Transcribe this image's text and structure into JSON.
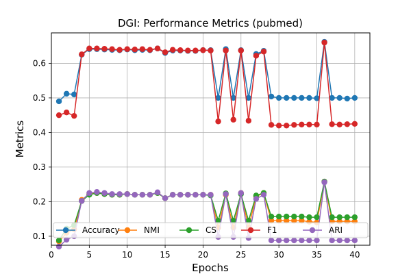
{
  "chart_data": {
    "type": "line",
    "title": "DGI: Performance Metrics (pubmed)",
    "xlabel": "Epochs",
    "ylabel": "Metrics",
    "xlim": [
      0,
      42
    ],
    "ylim": [
      0.074,
      0.688
    ],
    "xticks": [
      0,
      5,
      10,
      15,
      20,
      25,
      30,
      35,
      40
    ],
    "yticks": [
      0.1,
      0.2,
      0.3,
      0.4,
      0.5,
      0.6
    ],
    "grid": true,
    "legend_position": "bottom",
    "legend_columns": 5,
    "x": [
      1,
      2,
      3,
      4,
      5,
      6,
      7,
      8,
      9,
      10,
      11,
      12,
      13,
      14,
      15,
      16,
      17,
      18,
      19,
      20,
      21,
      22,
      23,
      24,
      25,
      26,
      27,
      28,
      29,
      30,
      31,
      32,
      33,
      34,
      35,
      36,
      37,
      38,
      39,
      40
    ],
    "series": [
      {
        "name": "Accuracy",
        "color": "#1f77b4",
        "values": [
          0.49,
          0.512,
          0.51,
          0.625,
          0.641,
          0.641,
          0.64,
          0.639,
          0.638,
          0.64,
          0.638,
          0.639,
          0.638,
          0.643,
          0.63,
          0.637,
          0.637,
          0.636,
          0.636,
          0.638,
          0.638,
          0.5,
          0.641,
          0.5,
          0.638,
          0.5,
          0.627,
          0.636,
          0.504,
          0.5,
          0.5,
          0.5,
          0.5,
          0.5,
          0.499,
          0.662,
          0.5,
          0.5,
          0.498,
          0.5
        ]
      },
      {
        "name": "NMI",
        "color": "#ff7f0e",
        "values": [
          0.085,
          0.11,
          0.12,
          0.205,
          0.222,
          0.225,
          0.222,
          0.22,
          0.22,
          0.222,
          0.22,
          0.22,
          0.22,
          0.225,
          0.21,
          0.22,
          0.22,
          0.22,
          0.22,
          0.22,
          0.22,
          0.125,
          0.22,
          0.125,
          0.225,
          0.125,
          0.215,
          0.225,
          0.145,
          0.145,
          0.145,
          0.145,
          0.145,
          0.142,
          0.14,
          0.258,
          0.143,
          0.143,
          0.143,
          0.143
        ]
      },
      {
        "name": "CS",
        "color": "#2ca02c",
        "values": [
          0.088,
          0.122,
          0.132,
          0.202,
          0.22,
          0.225,
          0.222,
          0.22,
          0.22,
          0.222,
          0.22,
          0.22,
          0.22,
          0.225,
          0.21,
          0.22,
          0.22,
          0.22,
          0.22,
          0.22,
          0.218,
          0.145,
          0.224,
          0.145,
          0.222,
          0.145,
          0.218,
          0.225,
          0.157,
          0.157,
          0.157,
          0.157,
          0.157,
          0.155,
          0.155,
          0.258,
          0.155,
          0.155,
          0.155,
          0.155
        ]
      },
      {
        "name": "F1",
        "color": "#d62728",
        "values": [
          0.45,
          0.458,
          0.448,
          0.626,
          0.643,
          0.643,
          0.642,
          0.641,
          0.639,
          0.641,
          0.64,
          0.641,
          0.639,
          0.643,
          0.632,
          0.639,
          0.638,
          0.637,
          0.637,
          0.638,
          0.637,
          0.432,
          0.637,
          0.437,
          0.637,
          0.434,
          0.622,
          0.634,
          0.422,
          0.42,
          0.42,
          0.422,
          0.423,
          0.423,
          0.423,
          0.66,
          0.424,
          0.423,
          0.424,
          0.425
        ]
      },
      {
        "name": "ARI",
        "color": "#9467bd",
        "values": [
          0.07,
          0.09,
          0.1,
          0.202,
          0.225,
          0.228,
          0.225,
          0.222,
          0.222,
          0.222,
          0.22,
          0.22,
          0.22,
          0.227,
          0.21,
          0.22,
          0.22,
          0.22,
          0.22,
          0.22,
          0.22,
          0.098,
          0.222,
          0.098,
          0.225,
          0.095,
          0.208,
          0.22,
          0.088,
          0.088,
          0.088,
          0.088,
          0.088,
          0.088,
          0.088,
          0.256,
          0.088,
          0.088,
          0.088,
          0.088
        ]
      }
    ]
  }
}
